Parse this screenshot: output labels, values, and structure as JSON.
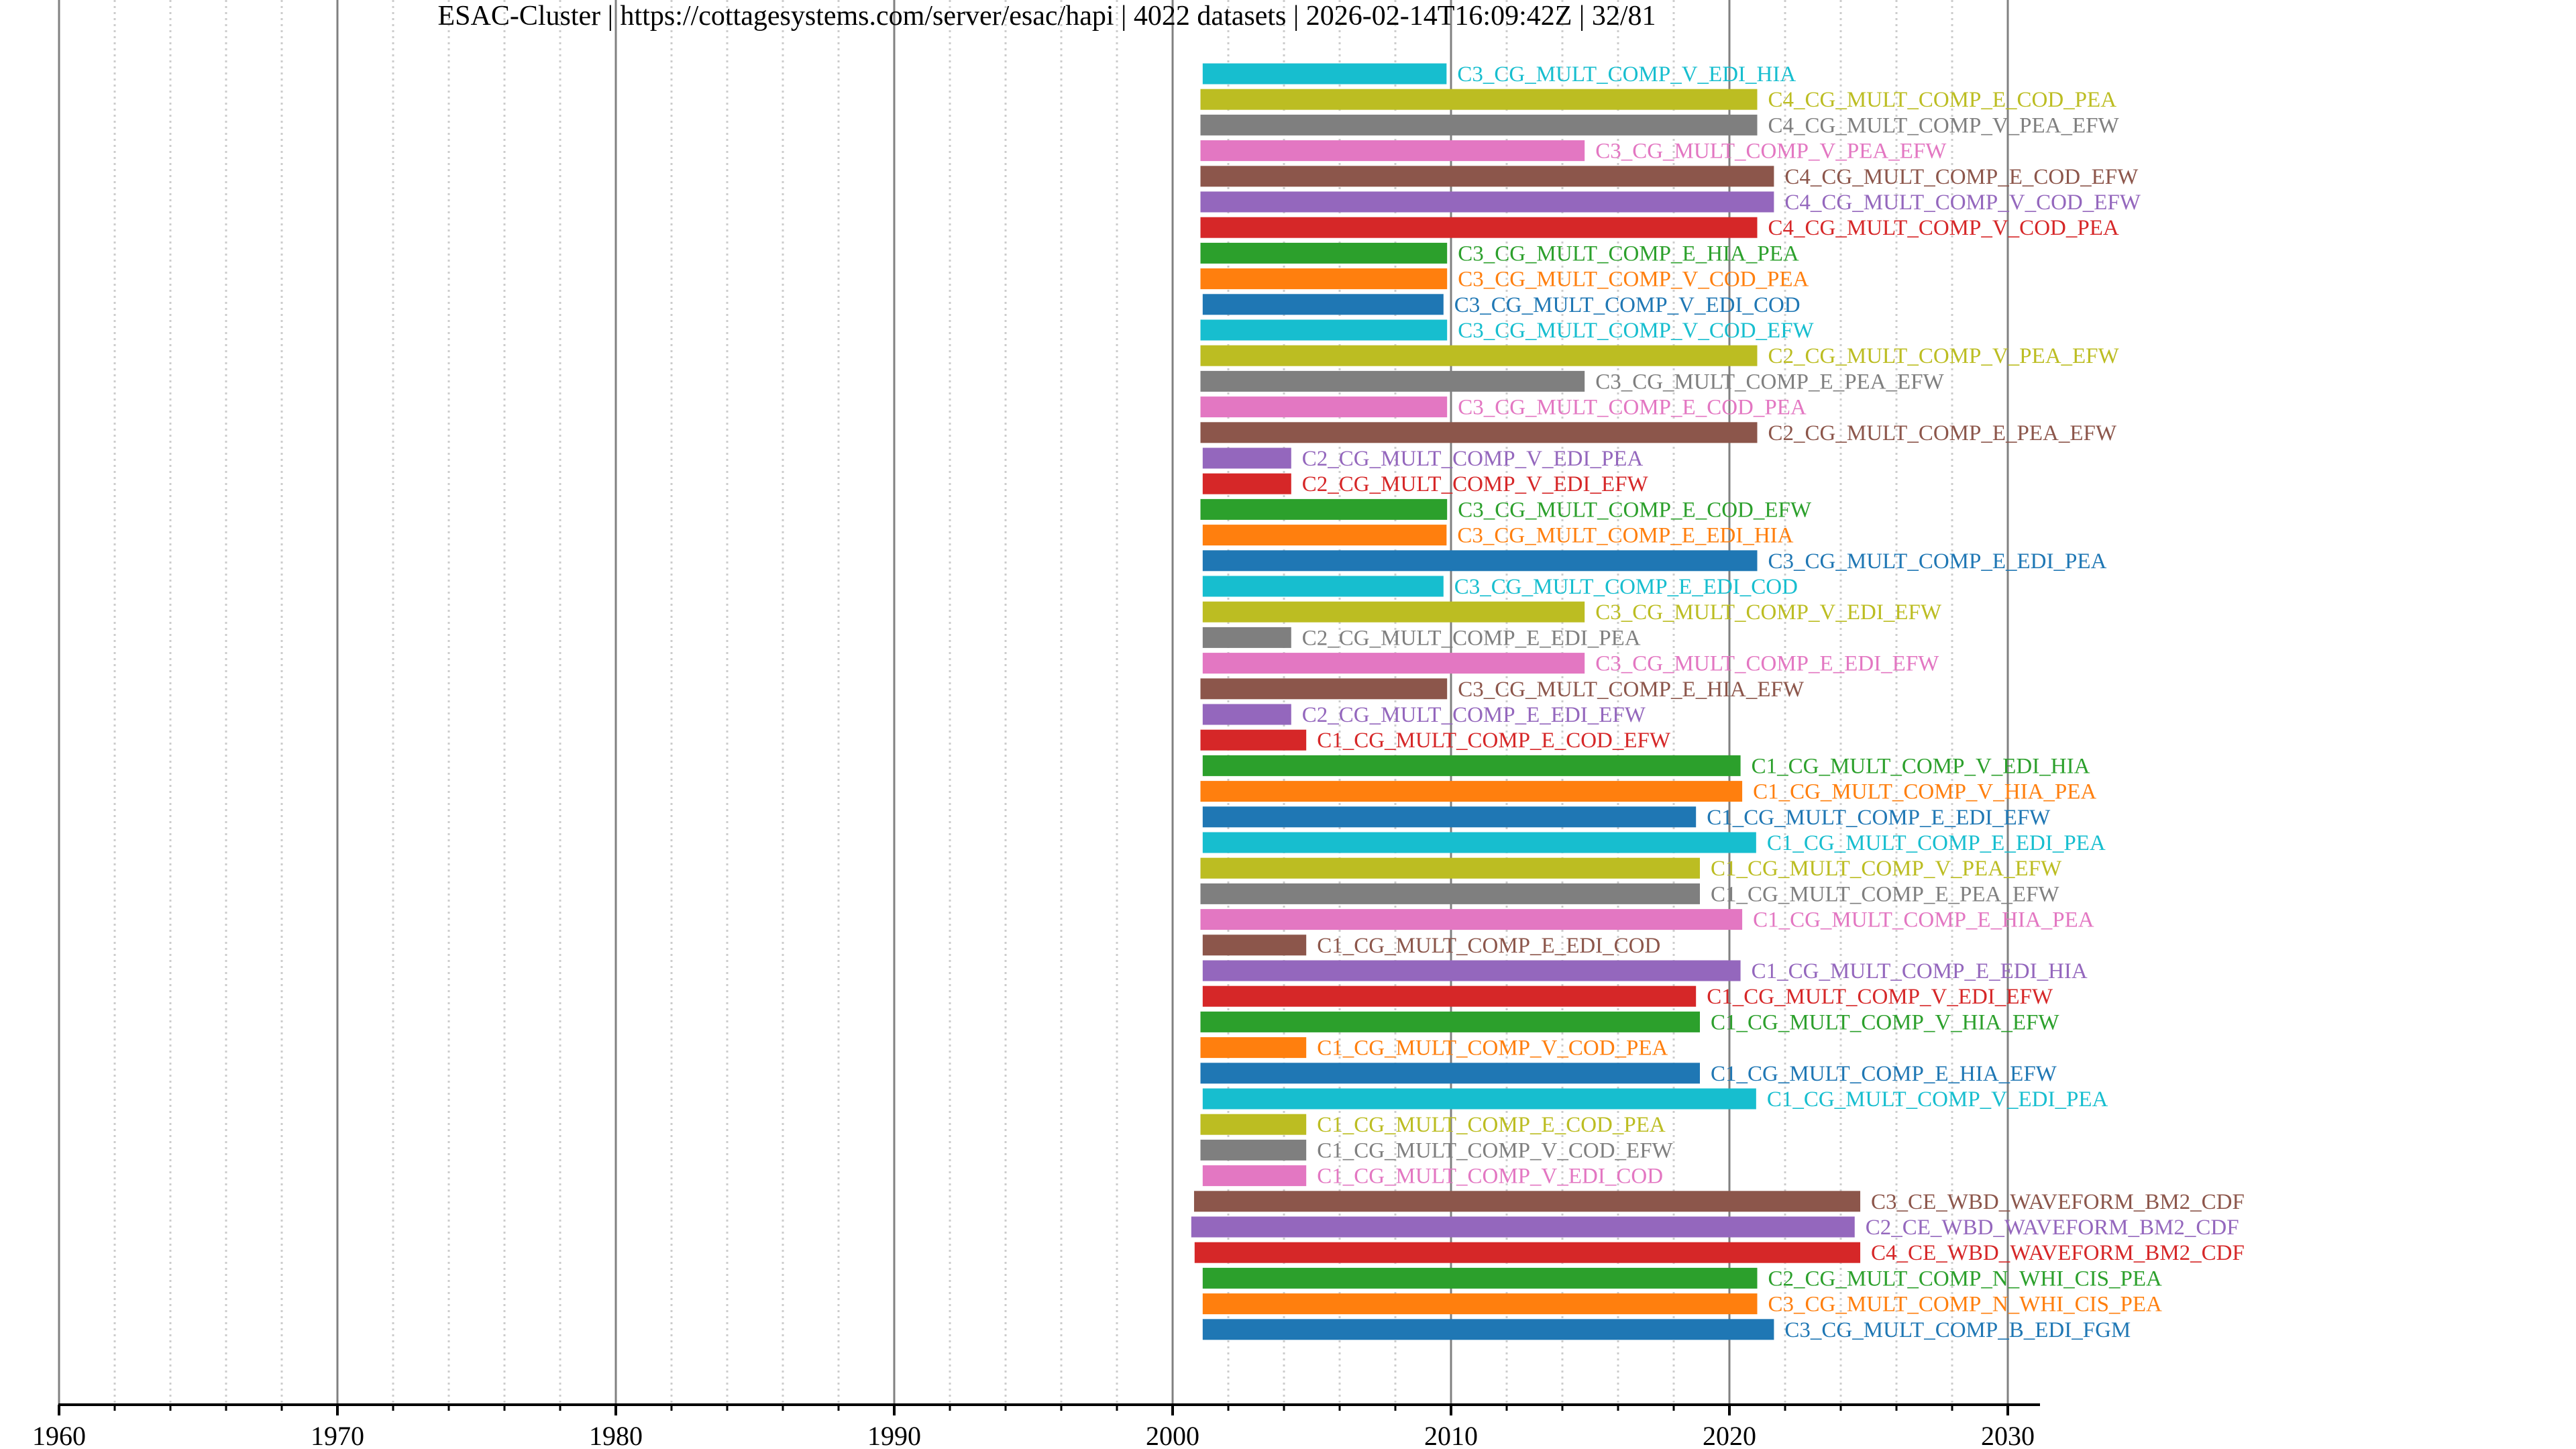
{
  "chart_data": {
    "type": "timeline",
    "title": "ESAC-Cluster | https://cottagesystems.com/server/esac/hapi | 4022 datasets | 2026-02-14T16:09:42Z | 32/81",
    "xlabel": "",
    "ylabel": "",
    "xlim": [
      1960,
      2031.1
    ],
    "x_major_ticks": [
      1960,
      1970,
      1980,
      1990,
      2000,
      2010,
      2020,
      2030
    ],
    "x_tick_labels": [
      "1960",
      "1970",
      "1980",
      "1990",
      "2000",
      "2010",
      "2020",
      "2030"
    ],
    "x_minor_tick_step": 2,
    "grid": {
      "major": true,
      "minor": true,
      "major_color": "#808080",
      "minor_color": "#cccccc"
    },
    "legend": "none",
    "palette": [
      "#1f77b4",
      "#ff7f0e",
      "#2ca02c",
      "#d62728",
      "#9467bd",
      "#8c564b",
      "#e377c2",
      "#7f7f7f",
      "#bcbd22",
      "#17becf"
    ],
    "series": [
      {
        "name": "C3_CG_MULT_COMP_V_EDI_HIA",
        "start": 2001.08,
        "end": 2009.84,
        "color": "#17becf"
      },
      {
        "name": "C4_CG_MULT_COMP_E_COD_PEA",
        "start": 2001.0,
        "end": 2021.0,
        "color": "#bcbd22"
      },
      {
        "name": "C4_CG_MULT_COMP_V_PEA_EFW",
        "start": 2001.0,
        "end": 2021.0,
        "color": "#7f7f7f"
      },
      {
        "name": "C3_CG_MULT_COMP_V_PEA_EFW",
        "start": 2001.0,
        "end": 2014.8,
        "color": "#e377c2"
      },
      {
        "name": "C4_CG_MULT_COMP_E_COD_EFW",
        "start": 2001.0,
        "end": 2021.6,
        "color": "#8c564b"
      },
      {
        "name": "C4_CG_MULT_COMP_V_COD_EFW",
        "start": 2001.0,
        "end": 2021.6,
        "color": "#9467bd"
      },
      {
        "name": "C4_CG_MULT_COMP_V_COD_PEA",
        "start": 2001.0,
        "end": 2021.0,
        "color": "#d62728"
      },
      {
        "name": "C3_CG_MULT_COMP_E_HIA_PEA",
        "start": 2001.0,
        "end": 2009.86,
        "color": "#2ca02c"
      },
      {
        "name": "C3_CG_MULT_COMP_V_COD_PEA",
        "start": 2001.0,
        "end": 2009.86,
        "color": "#ff7f0e"
      },
      {
        "name": "C3_CG_MULT_COMP_V_EDI_COD",
        "start": 2001.08,
        "end": 2009.73,
        "color": "#1f77b4"
      },
      {
        "name": "C3_CG_MULT_COMP_V_COD_EFW",
        "start": 2001.0,
        "end": 2009.86,
        "color": "#17becf"
      },
      {
        "name": "C2_CG_MULT_COMP_V_PEA_EFW",
        "start": 2001.0,
        "end": 2021.0,
        "color": "#bcbd22"
      },
      {
        "name": "C3_CG_MULT_COMP_E_PEA_EFW",
        "start": 2001.0,
        "end": 2014.8,
        "color": "#7f7f7f"
      },
      {
        "name": "C3_CG_MULT_COMP_E_COD_PEA",
        "start": 2001.0,
        "end": 2009.86,
        "color": "#e377c2"
      },
      {
        "name": "C2_CG_MULT_COMP_E_PEA_EFW",
        "start": 2001.0,
        "end": 2021.0,
        "color": "#8c564b"
      },
      {
        "name": "C2_CG_MULT_COMP_V_EDI_PEA",
        "start": 2001.08,
        "end": 2004.26,
        "color": "#9467bd"
      },
      {
        "name": "C2_CG_MULT_COMP_V_EDI_EFW",
        "start": 2001.08,
        "end": 2004.26,
        "color": "#d62728"
      },
      {
        "name": "C3_CG_MULT_COMP_E_COD_EFW",
        "start": 2001.0,
        "end": 2009.86,
        "color": "#2ca02c"
      },
      {
        "name": "C3_CG_MULT_COMP_E_EDI_HIA",
        "start": 2001.08,
        "end": 2009.84,
        "color": "#ff7f0e"
      },
      {
        "name": "C3_CG_MULT_COMP_E_EDI_PEA",
        "start": 2001.08,
        "end": 2021.0,
        "color": "#1f77b4"
      },
      {
        "name": "C3_CG_MULT_COMP_E_EDI_COD",
        "start": 2001.08,
        "end": 2009.73,
        "color": "#17becf"
      },
      {
        "name": "C3_CG_MULT_COMP_V_EDI_EFW",
        "start": 2001.08,
        "end": 2014.8,
        "color": "#bcbd22"
      },
      {
        "name": "C2_CG_MULT_COMP_E_EDI_PEA",
        "start": 2001.08,
        "end": 2004.26,
        "color": "#7f7f7f"
      },
      {
        "name": "C3_CG_MULT_COMP_E_EDI_EFW",
        "start": 2001.08,
        "end": 2014.8,
        "color": "#e377c2"
      },
      {
        "name": "C3_CG_MULT_COMP_E_HIA_EFW",
        "start": 2001.0,
        "end": 2009.86,
        "color": "#8c564b"
      },
      {
        "name": "C2_CG_MULT_COMP_E_EDI_EFW",
        "start": 2001.08,
        "end": 2004.26,
        "color": "#9467bd"
      },
      {
        "name": "C1_CG_MULT_COMP_E_COD_EFW",
        "start": 2001.0,
        "end": 2004.8,
        "color": "#d62728"
      },
      {
        "name": "C1_CG_MULT_COMP_V_EDI_HIA",
        "start": 2001.08,
        "end": 2020.4,
        "color": "#2ca02c"
      },
      {
        "name": "C1_CG_MULT_COMP_V_HIA_PEA",
        "start": 2001.0,
        "end": 2020.46,
        "color": "#ff7f0e"
      },
      {
        "name": "C1_CG_MULT_COMP_E_EDI_EFW",
        "start": 2001.08,
        "end": 2018.8,
        "color": "#1f77b4"
      },
      {
        "name": "C1_CG_MULT_COMP_E_EDI_PEA",
        "start": 2001.08,
        "end": 2020.96,
        "color": "#17becf"
      },
      {
        "name": "C1_CG_MULT_COMP_V_PEA_EFW",
        "start": 2001.0,
        "end": 2018.94,
        "color": "#bcbd22"
      },
      {
        "name": "C1_CG_MULT_COMP_E_PEA_EFW",
        "start": 2001.0,
        "end": 2018.94,
        "color": "#7f7f7f"
      },
      {
        "name": "C1_CG_MULT_COMP_E_HIA_PEA",
        "start": 2001.0,
        "end": 2020.46,
        "color": "#e377c2"
      },
      {
        "name": "C1_CG_MULT_COMP_E_EDI_COD",
        "start": 2001.08,
        "end": 2004.8,
        "color": "#8c564b"
      },
      {
        "name": "C1_CG_MULT_COMP_E_EDI_HIA",
        "start": 2001.08,
        "end": 2020.4,
        "color": "#9467bd"
      },
      {
        "name": "C1_CG_MULT_COMP_V_EDI_EFW",
        "start": 2001.08,
        "end": 2018.8,
        "color": "#d62728"
      },
      {
        "name": "C1_CG_MULT_COMP_V_HIA_EFW",
        "start": 2001.0,
        "end": 2018.94,
        "color": "#2ca02c"
      },
      {
        "name": "C1_CG_MULT_COMP_V_COD_PEA",
        "start": 2001.0,
        "end": 2004.8,
        "color": "#ff7f0e"
      },
      {
        "name": "C1_CG_MULT_COMP_E_HIA_EFW",
        "start": 2001.0,
        "end": 2018.94,
        "color": "#1f77b4"
      },
      {
        "name": "C1_CG_MULT_COMP_V_EDI_PEA",
        "start": 2001.08,
        "end": 2020.96,
        "color": "#17becf"
      },
      {
        "name": "C1_CG_MULT_COMP_E_COD_PEA",
        "start": 2001.0,
        "end": 2004.8,
        "color": "#bcbd22"
      },
      {
        "name": "C1_CG_MULT_COMP_V_COD_EFW",
        "start": 2001.0,
        "end": 2004.8,
        "color": "#7f7f7f"
      },
      {
        "name": "C1_CG_MULT_COMP_V_EDI_COD",
        "start": 2001.08,
        "end": 2004.8,
        "color": "#e377c2"
      },
      {
        "name": "C3_CE_WBD_WAVEFORM_BM2_CDF",
        "start": 2000.77,
        "end": 2024.7,
        "color": "#8c564b"
      },
      {
        "name": "C2_CE_WBD_WAVEFORM_BM2_CDF",
        "start": 2000.67,
        "end": 2024.5,
        "color": "#9467bd"
      },
      {
        "name": "C4_CE_WBD_WAVEFORM_BM2_CDF",
        "start": 2000.79,
        "end": 2024.7,
        "color": "#d62728"
      },
      {
        "name": "C2_CG_MULT_COMP_N_WHI_CIS_PEA",
        "start": 2001.08,
        "end": 2021.0,
        "color": "#2ca02c"
      },
      {
        "name": "C3_CG_MULT_COMP_N_WHI_CIS_PEA",
        "start": 2001.08,
        "end": 2021.0,
        "color": "#ff7f0e"
      },
      {
        "name": "C3_CG_MULT_COMP_B_EDI_FGM",
        "start": 2001.08,
        "end": 2021.6,
        "color": "#1f77b4"
      }
    ]
  }
}
